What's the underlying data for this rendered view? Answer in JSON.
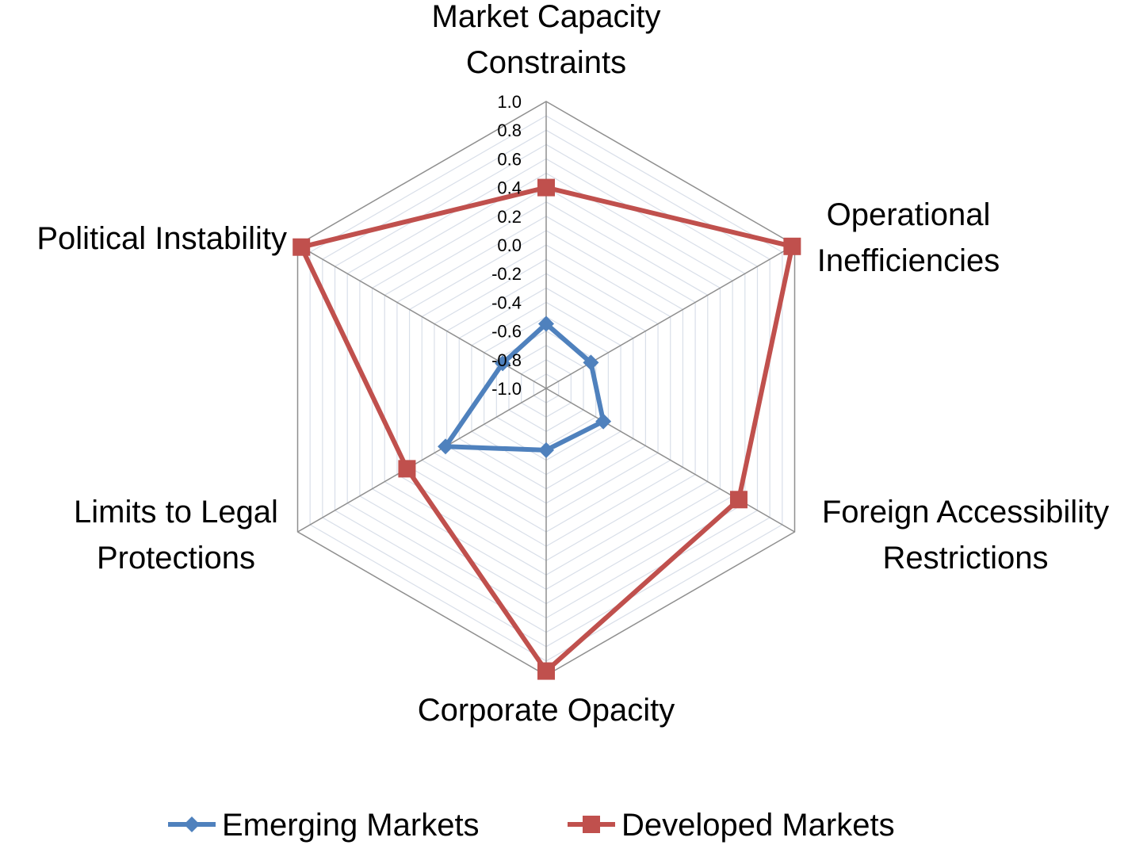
{
  "chart_data": {
    "type": "radar",
    "categories": [
      [
        "Market Capacity",
        "Constraints"
      ],
      [
        "Operational",
        "Inefficiencies"
      ],
      [
        "Foreign Accessibility",
        "Restrictions"
      ],
      [
        "Corporate Opacity"
      ],
      [
        "Limits to Legal",
        "Protections"
      ],
      [
        "Political Instability"
      ]
    ],
    "r_range": [
      -1.0,
      1.0
    ],
    "ticks": [
      "1.0",
      "0.8",
      "0.6",
      "0.4",
      "0.2",
      "0.0",
      "-0.2",
      "-0.4",
      "-0.6",
      "-0.8",
      "-1.0"
    ],
    "tick_values": [
      1.0,
      0.8,
      0.6,
      0.4,
      0.2,
      0.0,
      -0.2,
      -0.4,
      -0.6,
      -0.8,
      -1.0
    ],
    "grid_step": 0.1,
    "legend_position": "bottom",
    "series": [
      {
        "name": "Emerging Markets",
        "values": [
          -0.55,
          -0.64,
          -0.54,
          -0.57,
          -0.19,
          -0.65
        ],
        "color": "#4f81bd",
        "marker": "diamond"
      },
      {
        "name": "Developed Markets",
        "values": [
          0.4,
          0.98,
          0.55,
          0.97,
          0.12,
          0.97
        ],
        "color": "#c0504d",
        "marker": "square"
      }
    ]
  }
}
